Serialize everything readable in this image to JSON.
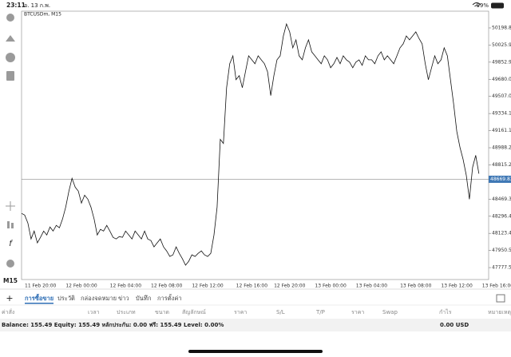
{
  "status_bar": {
    "time": "23:11",
    "date": "อ. 13 ก.พ.",
    "battery": "99%"
  },
  "chart_data": {
    "type": "line",
    "title": "BTCUSDm, M15",
    "color": "#111111",
    "categories": [
      null,
      null,
      null,
      null,
      null,
      null,
      "11 Feb 20:00",
      null,
      null,
      null,
      null,
      null,
      null,
      null,
      null,
      null,
      null,
      null,
      null,
      "12 Feb 00:00",
      null,
      null,
      null,
      null,
      null,
      null,
      null,
      null,
      null,
      null,
      null,
      null,
      null,
      "12 Feb 04:00",
      null,
      null,
      null,
      null,
      null,
      null,
      null,
      null,
      null,
      null,
      null,
      null,
      "12 Feb 08:00",
      null,
      null,
      null,
      null,
      null,
      null,
      null,
      null,
      null,
      null,
      null,
      null,
      "12 Feb 12:00",
      null,
      null,
      null,
      null,
      null,
      null,
      null,
      null,
      null,
      null,
      null,
      null,
      null,
      "12 Feb 16:00",
      null,
      null,
      null,
      null,
      null,
      null,
      null,
      null,
      null,
      null,
      null,
      "12 Feb 20:00",
      null,
      null,
      null,
      null,
      null,
      null,
      null,
      null,
      null,
      null,
      null,
      null,
      "13 Feb 00:00",
      null,
      null,
      null,
      null,
      null,
      null,
      null,
      null,
      null,
      null,
      null,
      null,
      "13 Feb 04:00",
      null,
      null,
      null,
      null,
      null,
      null,
      null,
      null,
      null,
      null,
      null,
      null,
      null,
      "13 Feb 08:00",
      null,
      null,
      null,
      null,
      null,
      null,
      null,
      null,
      null,
      null,
      null,
      null,
      "13 Feb 12:00",
      null,
      null,
      null,
      null,
      null,
      null,
      null,
      null,
      null,
      null,
      null,
      null,
      "13 Feb 16:00"
    ],
    "values": [
      48325,
      48308,
      48228,
      48067,
      48147,
      48027,
      48083,
      48147,
      48107,
      48188,
      48147,
      48204,
      48180,
      48268,
      48389,
      48550,
      48679,
      48590,
      48550,
      48429,
      48509,
      48469,
      48389,
      48268,
      48107,
      48164,
      48147,
      48204,
      48147,
      48083,
      48067,
      48091,
      48083,
      48147,
      48107,
      48067,
      48147,
      48107,
      48067,
      48147,
      48067,
      48051,
      47987,
      48027,
      48067,
      47987,
      47946,
      47890,
      47906,
      47987,
      47922,
      47866,
      47802,
      47842,
      47906,
      47890,
      47922,
      47946,
      47906,
      47890,
      47922,
      48107,
      48389,
      49073,
      49032,
      49595,
      49837,
      49917,
      49676,
      49716,
      49595,
      49756,
      49917,
      49877,
      49837,
      49917,
      49877,
      49837,
      49756,
      49515,
      49716,
      49877,
      49917,
      50118,
      50239,
      50159,
      49998,
      50078,
      49917,
      49877,
      49998,
      50078,
      49957,
      49917,
      49877,
      49837,
      49917,
      49877,
      49797,
      49837,
      49901,
      49837,
      49917,
      49877,
      49853,
      49797,
      49853,
      49877,
      49821,
      49917,
      49877,
      49877,
      49837,
      49917,
      49957,
      49877,
      49917,
      49877,
      49837,
      49917,
      49998,
      50038,
      50118,
      50078,
      50118,
      50159,
      50094,
      50038,
      49837,
      49676,
      49797,
      49917,
      49837,
      49877,
      49998,
      49917,
      49676,
      49434,
      49153,
      48992,
      48871,
      48710,
      48469,
      48791,
      48912,
      48727,
      null,
      null,
      null,
      null,
      null,
      null
    ],
    "ylim": [
      47657,
      50368
    ],
    "yticks": [
      47777.55,
      {
        "value": 47950.5,
        "label": "47950.50"
      },
      48123.45,
      {
        "value": 48296.4,
        "label": "48296.40"
      },
      48469.35,
      48815.25,
      {
        "value": 48988.2,
        "label": "48988.20"
      },
      49161.15,
      {
        "value": 49334.1,
        "label": "49334.10"
      },
      49507.05,
      {
        "value": 49680,
        "label": "49680.00"
      },
      49852.95,
      {
        "value": 50025.9,
        "label": "50025.90"
      },
      50198.85
    ],
    "price_line": {
      "value": 48669.83,
      "color": "#3f78b5"
    }
  },
  "timeframe": "M15",
  "tabs": [
    "การซื้อขาย",
    "ประวัติ",
    "กล่องจดหมาย",
    "ข่าว",
    "บันทึก",
    "การตั้งค่า"
  ],
  "active_tab": 0,
  "table": {
    "columns": [
      "ค่าสั่ง",
      "เวลา",
      "ประเภท",
      "ขนาด",
      "สัญลักษณ์",
      "ราคา",
      "S/L",
      "T/P",
      "ราคา",
      "Swap",
      "กำไร",
      "หมายเหตุ"
    ]
  },
  "account": {
    "summary": "Balance: 155.49 Equity: 155.49 หลักประกัน: 0.00 ฟรี: 155.49 Level: 0.00%",
    "profit": "0.00 USD"
  }
}
